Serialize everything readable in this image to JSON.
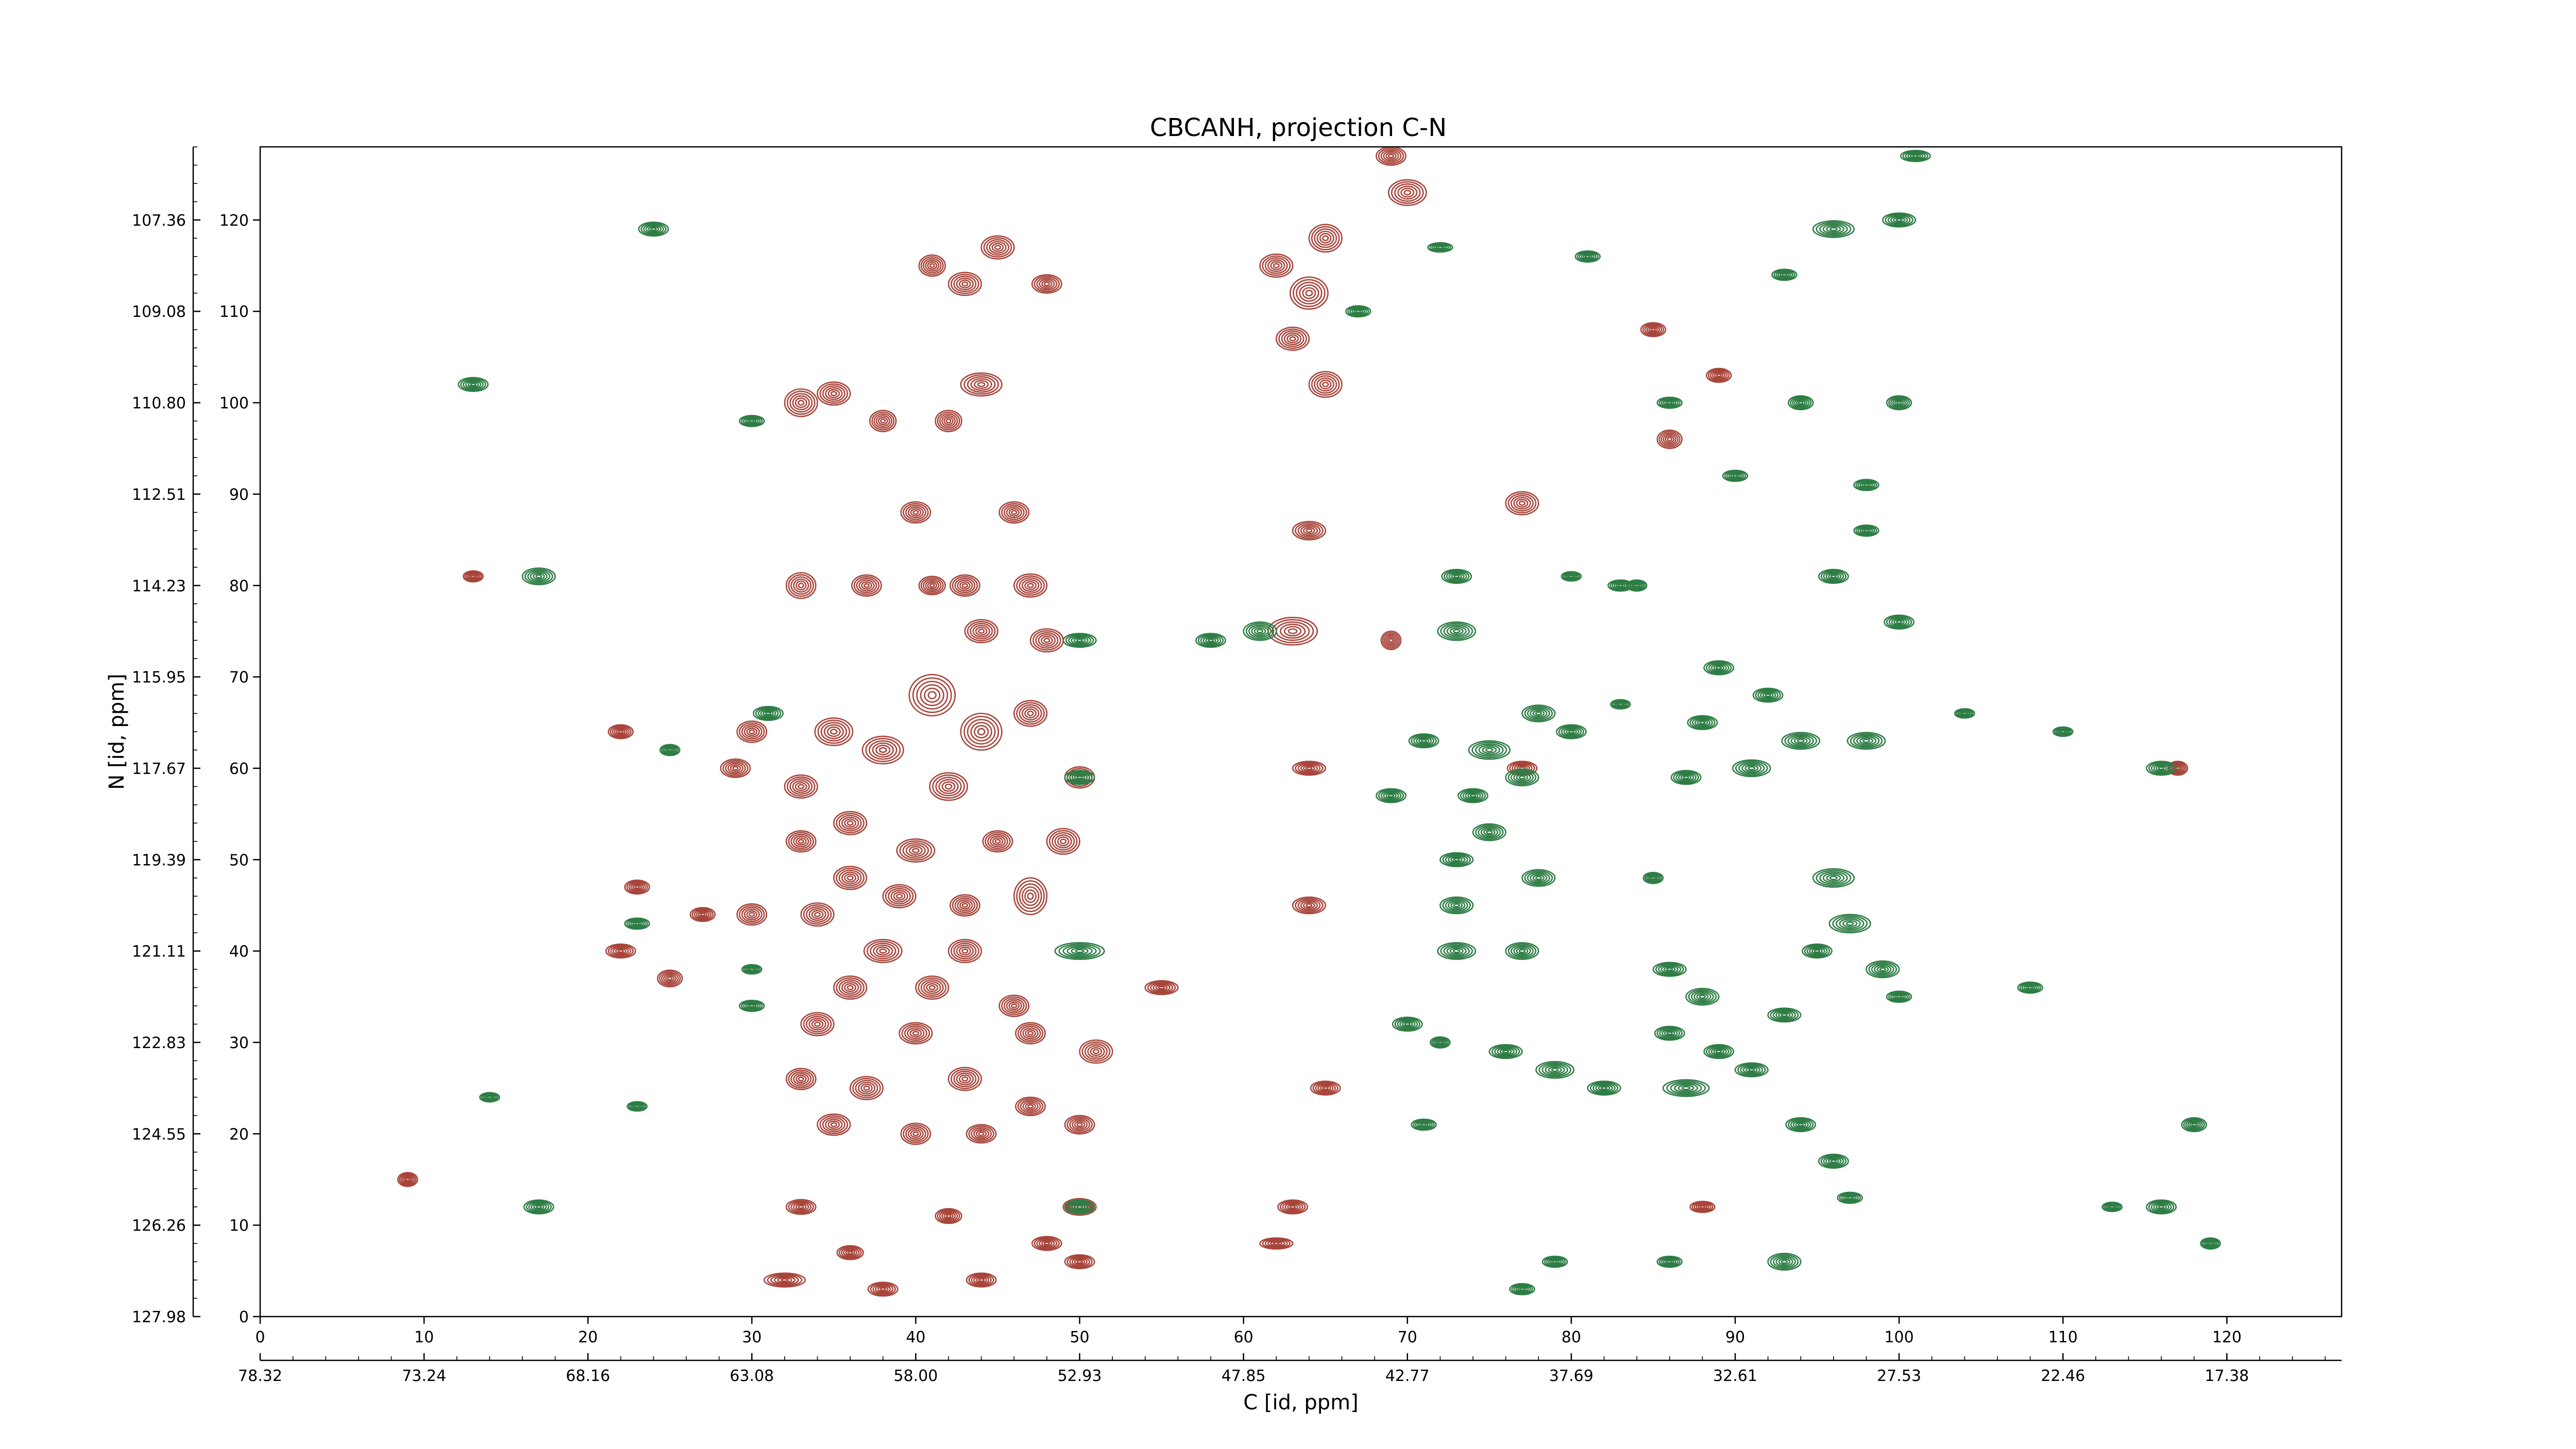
{
  "chart_data": {
    "type": "contour",
    "title": "CBCANH, projection C-N",
    "xlabel": "C [id, ppm]",
    "ylabel": "N [id, ppm]",
    "x_index_range": [
      0,
      127
    ],
    "y_index_range": [
      0,
      128
    ],
    "x_index_ticks": [
      0,
      10,
      20,
      30,
      40,
      50,
      60,
      70,
      80,
      90,
      100,
      110,
      120
    ],
    "y_index_ticks": [
      0,
      10,
      20,
      30,
      40,
      50,
      60,
      70,
      80,
      90,
      100,
      110,
      120
    ],
    "x_ppm_ticks": [
      "78.32",
      "73.24",
      "68.16",
      "63.08",
      "58.00",
      "52.93",
      "47.85",
      "42.77",
      "37.69",
      "32.61",
      "27.53",
      "22.46",
      "17.38"
    ],
    "y_ppm_ticks": [
      "127.98",
      "126.26",
      "124.55",
      "122.83",
      "121.11",
      "119.39",
      "117.67",
      "115.95",
      "114.23",
      "112.51",
      "110.80",
      "109.08",
      "107.36"
    ],
    "grid": false,
    "colors": {
      "positive": "#a8453b",
      "negative": "#2e7d45"
    },
    "series": [
      {
        "sign": "positive",
        "peaks": [
          [
            33,
            80,
            1.8,
            2.8
          ],
          [
            37,
            80,
            1.8,
            2.3
          ],
          [
            40,
            88,
            1.8,
            2.3
          ],
          [
            41,
            80,
            1.6,
            2.0
          ],
          [
            43,
            80,
            1.8,
            2.3
          ],
          [
            47,
            80,
            2.0,
            2.5
          ],
          [
            46,
            88,
            1.8,
            2.3
          ],
          [
            44,
            75,
            2.0,
            2.5
          ],
          [
            48,
            74,
            2.0,
            2.5
          ],
          [
            33,
            100,
            2.0,
            3.0
          ],
          [
            35,
            101,
            2.0,
            2.5
          ],
          [
            38,
            98,
            1.6,
            2.3
          ],
          [
            42,
            98,
            1.6,
            2.3
          ],
          [
            44,
            102,
            2.5,
            2.5
          ],
          [
            43,
            113,
            2.0,
            2.5
          ],
          [
            41,
            115,
            1.6,
            2.3
          ],
          [
            45,
            117,
            2.0,
            2.5
          ],
          [
            48,
            113,
            1.8,
            2.0
          ],
          [
            64,
            112,
            2.3,
            3.5
          ],
          [
            63,
            107,
            2.0,
            2.5
          ],
          [
            65,
            102,
            2.0,
            2.8
          ],
          [
            65,
            118,
            2.0,
            3.0
          ],
          [
            70,
            123,
            2.3,
            2.8
          ],
          [
            69,
            127,
            1.8,
            2.0
          ],
          [
            62,
            115,
            2.0,
            2.5
          ],
          [
            64,
            86,
            2.0,
            2.0
          ],
          [
            77,
            89,
            2.0,
            2.5
          ],
          [
            63,
            75,
            3.0,
            3.0
          ],
          [
            69,
            74,
            1.2,
            2.0
          ],
          [
            30,
            64,
            1.8,
            2.3
          ],
          [
            29,
            60,
            1.8,
            2.0
          ],
          [
            33,
            58,
            2.0,
            2.5
          ],
          [
            35,
            64,
            2.3,
            3.0
          ],
          [
            38,
            62,
            2.5,
            3.0
          ],
          [
            41,
            68,
            2.8,
            4.5
          ],
          [
            44,
            64,
            2.5,
            4.0
          ],
          [
            47,
            66,
            2.0,
            2.8
          ],
          [
            42,
            58,
            2.3,
            3.0
          ],
          [
            36,
            54,
            2.0,
            2.5
          ],
          [
            33,
            52,
            1.8,
            2.3
          ],
          [
            40,
            51,
            2.3,
            2.5
          ],
          [
            36,
            48,
            2.0,
            2.5
          ],
          [
            30,
            44,
            1.8,
            2.3
          ],
          [
            34,
            44,
            2.0,
            2.5
          ],
          [
            39,
            46,
            2.0,
            2.5
          ],
          [
            43,
            45,
            1.8,
            2.3
          ],
          [
            47,
            46,
            2.0,
            4.0
          ],
          [
            49,
            52,
            2.0,
            2.8
          ],
          [
            45,
            52,
            1.8,
            2.3
          ],
          [
            50,
            59,
            1.8,
            2.3
          ],
          [
            38,
            40,
            2.3,
            2.5
          ],
          [
            43,
            40,
            2.0,
            2.5
          ],
          [
            36,
            36,
            2.0,
            2.5
          ],
          [
            41,
            36,
            2.0,
            2.5
          ],
          [
            46,
            34,
            1.8,
            2.3
          ],
          [
            34,
            32,
            2.0,
            2.5
          ],
          [
            40,
            31,
            2.0,
            2.3
          ],
          [
            47,
            31,
            1.8,
            2.3
          ],
          [
            51,
            29,
            2.0,
            2.5
          ],
          [
            33,
            26,
            1.8,
            2.3
          ],
          [
            37,
            25,
            2.0,
            2.5
          ],
          [
            43,
            26,
            2.0,
            2.5
          ],
          [
            47,
            23,
            1.8,
            2.0
          ],
          [
            50,
            21,
            1.8,
            2.0
          ],
          [
            35,
            21,
            2.0,
            2.3
          ],
          [
            40,
            20,
            1.8,
            2.3
          ],
          [
            44,
            20,
            1.8,
            2.0
          ],
          [
            33,
            12,
            1.8,
            1.6
          ],
          [
            42,
            11,
            1.6,
            1.6
          ],
          [
            50,
            12,
            2.0,
            1.8
          ],
          [
            48,
            8,
            1.8,
            1.5
          ],
          [
            50,
            6,
            1.8,
            1.5
          ],
          [
            36,
            7,
            1.6,
            1.5
          ],
          [
            32,
            4,
            2.5,
            1.5
          ],
          [
            44,
            4,
            1.8,
            1.5
          ],
          [
            38,
            3,
            1.8,
            1.5
          ],
          [
            55,
            36,
            2.0,
            1.5
          ],
          [
            64,
            45,
            2.0,
            1.8
          ],
          [
            65,
            25,
            1.8,
            1.5
          ],
          [
            63,
            12,
            1.8,
            1.5
          ],
          [
            62,
            8,
            2.0,
            1.2
          ],
          [
            64,
            60,
            2.0,
            1.5
          ],
          [
            77,
            60,
            1.8,
            1.5
          ],
          [
            22,
            64,
            1.5,
            1.5
          ],
          [
            23,
            47,
            1.5,
            1.5
          ],
          [
            22,
            40,
            1.8,
            1.5
          ],
          [
            25,
            37,
            1.5,
            1.8
          ],
          [
            27,
            44,
            1.5,
            1.5
          ],
          [
            88,
            12,
            1.5,
            1.2
          ],
          [
            117,
            60,
            1.2,
            1.5
          ],
          [
            86,
            96,
            1.5,
            2.0
          ],
          [
            89,
            103,
            1.5,
            1.5
          ],
          [
            85,
            108,
            1.5,
            1.5
          ],
          [
            13,
            81,
            1.2,
            1.2
          ],
          [
            9,
            15,
            1.2,
            1.5
          ]
        ]
      },
      {
        "sign": "negative",
        "peaks": [
          [
            17,
            81,
            2.0,
            1.8
          ],
          [
            24,
            119,
            1.8,
            1.5
          ],
          [
            13,
            102,
            1.8,
            1.5
          ],
          [
            30,
            98,
            1.5,
            1.2
          ],
          [
            50,
            74,
            2.0,
            1.5
          ],
          [
            58,
            74,
            1.8,
            1.5
          ],
          [
            61,
            75,
            2.0,
            2.0
          ],
          [
            73,
            81,
            1.8,
            1.5
          ],
          [
            73,
            75,
            2.3,
            2.0
          ],
          [
            75,
            62,
            2.5,
            2.0
          ],
          [
            78,
            66,
            2.0,
            1.8
          ],
          [
            80,
            64,
            1.8,
            1.5
          ],
          [
            77,
            59,
            2.0,
            1.8
          ],
          [
            74,
            57,
            1.8,
            1.5
          ],
          [
            71,
            63,
            1.8,
            1.5
          ],
          [
            69,
            57,
            1.8,
            1.5
          ],
          [
            75,
            53,
            2.0,
            1.8
          ],
          [
            73,
            50,
            2.0,
            1.5
          ],
          [
            78,
            48,
            2.0,
            1.8
          ],
          [
            73,
            45,
            2.0,
            1.8
          ],
          [
            77,
            40,
            2.0,
            1.8
          ],
          [
            73,
            40,
            2.3,
            1.8
          ],
          [
            70,
            32,
            1.8,
            1.5
          ],
          [
            76,
            29,
            2.0,
            1.5
          ],
          [
            79,
            27,
            2.3,
            1.8
          ],
          [
            82,
            25,
            2.0,
            1.5
          ],
          [
            87,
            25,
            2.8,
            1.8
          ],
          [
            91,
            27,
            2.0,
            1.5
          ],
          [
            88,
            35,
            2.0,
            1.8
          ],
          [
            93,
            33,
            2.0,
            1.5
          ],
          [
            89,
            29,
            1.8,
            1.5
          ],
          [
            86,
            31,
            1.8,
            1.5
          ],
          [
            87,
            59,
            1.8,
            1.5
          ],
          [
            91,
            60,
            2.3,
            1.8
          ],
          [
            94,
            63,
            2.3,
            1.8
          ],
          [
            98,
            63,
            2.3,
            1.8
          ],
          [
            92,
            68,
            1.8,
            1.5
          ],
          [
            89,
            71,
            1.8,
            1.5
          ],
          [
            88,
            65,
            1.8,
            1.5
          ],
          [
            96,
            48,
            2.5,
            2.0
          ],
          [
            97,
            43,
            2.5,
            2.0
          ],
          [
            99,
            38,
            2.0,
            1.8
          ],
          [
            95,
            40,
            1.8,
            1.5
          ],
          [
            100,
            35,
            1.5,
            1.2
          ],
          [
            86,
            38,
            2.0,
            1.5
          ],
          [
            94,
            21,
            1.8,
            1.5
          ],
          [
            96,
            17,
            1.8,
            1.5
          ],
          [
            86,
            6,
            1.5,
            1.2
          ],
          [
            93,
            6,
            2.0,
            1.8
          ],
          [
            79,
            6,
            1.5,
            1.2
          ],
          [
            77,
            3,
            1.5,
            1.2
          ],
          [
            100,
            76,
            1.8,
            1.5
          ],
          [
            96,
            81,
            1.8,
            1.5
          ],
          [
            98,
            86,
            1.5,
            1.2
          ],
          [
            94,
            100,
            1.5,
            1.5
          ],
          [
            96,
            119,
            2.5,
            1.8
          ],
          [
            100,
            120,
            2.0,
            1.5
          ],
          [
            101,
            127,
            1.8,
            1.2
          ],
          [
            93,
            114,
            1.5,
            1.2
          ],
          [
            67,
            110,
            1.5,
            1.2
          ],
          [
            72,
            117,
            1.5,
            1.0
          ],
          [
            81,
            116,
            1.5,
            1.2
          ],
          [
            86,
            100,
            1.5,
            1.2
          ],
          [
            90,
            92,
            1.5,
            1.2
          ],
          [
            98,
            91,
            1.5,
            1.2
          ],
          [
            100,
            100,
            1.5,
            1.5
          ],
          [
            84,
            80,
            1.2,
            1.2
          ],
          [
            83,
            67,
            1.2,
            1.0
          ],
          [
            17,
            12,
            1.8,
            1.5
          ],
          [
            14,
            24,
            1.2,
            1.0
          ],
          [
            23,
            23,
            1.2,
            1.0
          ],
          [
            30,
            34,
            1.5,
            1.2
          ],
          [
            23,
            43,
            1.5,
            1.2
          ],
          [
            31,
            66,
            1.8,
            1.5
          ],
          [
            25,
            62,
            1.2,
            1.2
          ],
          [
            30,
            38,
            1.2,
            1.0
          ],
          [
            50,
            59,
            1.8,
            1.5
          ],
          [
            50,
            40,
            3.0,
            1.8
          ],
          [
            50,
            12,
            1.8,
            1.5
          ],
          [
            116,
            12,
            1.8,
            1.5
          ],
          [
            116,
            60,
            1.8,
            1.5
          ],
          [
            119,
            8,
            1.2,
            1.2
          ],
          [
            118,
            21,
            1.5,
            1.5
          ],
          [
            108,
            36,
            1.5,
            1.2
          ],
          [
            110,
            64,
            1.2,
            1.0
          ],
          [
            71,
            21,
            1.5,
            1.2
          ],
          [
            72,
            30,
            1.2,
            1.2
          ],
          [
            85,
            48,
            1.2,
            1.2
          ],
          [
            97,
            13,
            1.5,
            1.2
          ],
          [
            104,
            66,
            1.2,
            1.0
          ],
          [
            83,
            80,
            1.5,
            1.2
          ],
          [
            80,
            81,
            1.2,
            1.0
          ],
          [
            113,
            12,
            1.2,
            1.0
          ]
        ]
      }
    ]
  }
}
